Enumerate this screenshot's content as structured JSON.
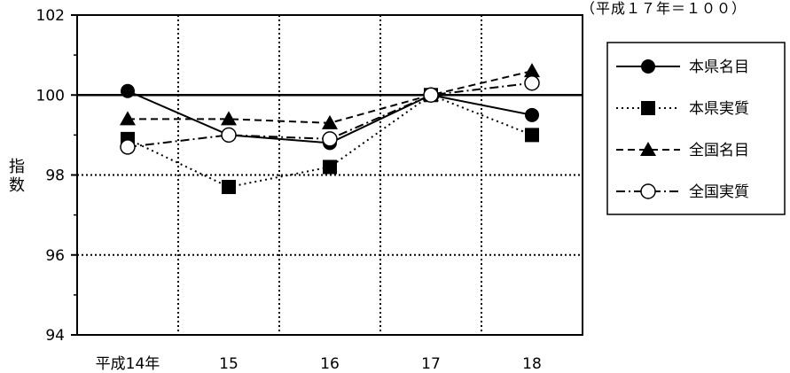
{
  "chart_data": {
    "type": "line",
    "note": "（平成１７年＝１００）",
    "ylabel_line1": "指",
    "ylabel_line2": "数",
    "categories": [
      "平成14年",
      "15",
      "16",
      "17",
      "18"
    ],
    "ylim": [
      94,
      102
    ],
    "yticks": [
      "94",
      "96",
      "98",
      "100",
      "102"
    ],
    "grid": true,
    "legend_position": "right",
    "series": [
      {
        "name": "本県名目",
        "values": [
          100.1,
          99.0,
          98.8,
          100.0,
          99.5
        ],
        "marker": "circle-filled",
        "line": "solid"
      },
      {
        "name": "本県実質",
        "values": [
          98.9,
          97.7,
          98.2,
          100.0,
          99.0
        ],
        "marker": "square-filled",
        "line": "dotted"
      },
      {
        "name": "全国名目",
        "values": [
          99.4,
          99.4,
          99.3,
          100.0,
          100.6
        ],
        "marker": "triangle-filled",
        "line": "dashed"
      },
      {
        "name": "全国実質",
        "values": [
          98.7,
          99.0,
          98.9,
          100.0,
          100.3
        ],
        "marker": "circle-open",
        "line": "dashdot"
      }
    ]
  }
}
